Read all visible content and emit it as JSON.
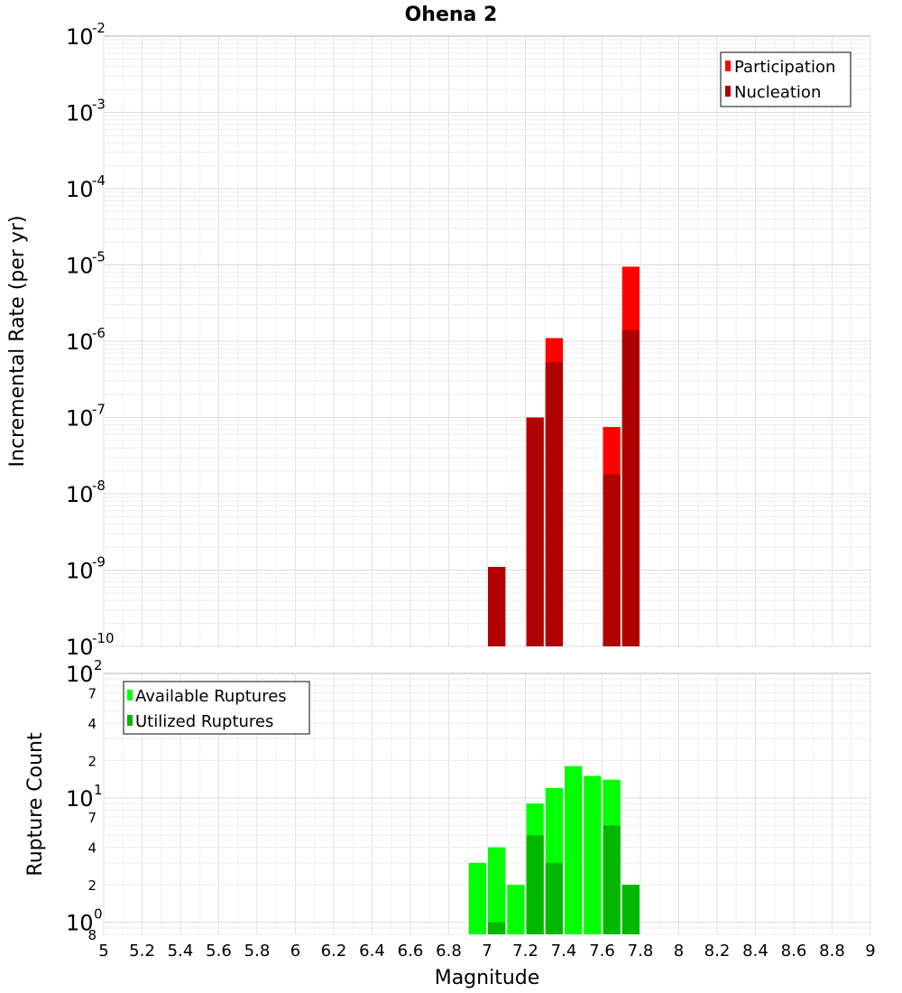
{
  "chart_data": [
    {
      "type": "bar",
      "title": "Ohena 2",
      "xlabel": "Magnitude",
      "ylabel": "Incremental Rate (per yr)",
      "yscale": "log",
      "ylim": [
        1e-10,
        0.01
      ],
      "xlim": [
        5,
        9
      ],
      "grid": true,
      "legend_position": "top-right",
      "bar_width": 0.1,
      "y_ticks": [
        {
          "base": "10",
          "exp": "-2"
        },
        {
          "base": "10",
          "exp": "-3"
        },
        {
          "base": "10",
          "exp": "-4"
        },
        {
          "base": "10",
          "exp": "-5"
        },
        {
          "base": "10",
          "exp": "-6"
        },
        {
          "base": "10",
          "exp": "-7"
        },
        {
          "base": "10",
          "exp": "-8"
        },
        {
          "base": "10",
          "exp": "-9"
        },
        {
          "base": "10",
          "exp": "-10"
        }
      ],
      "series": [
        {
          "name": "Participation",
          "color": "#ff0000",
          "points": [
            {
              "x": 7.05,
              "y": 1.1e-09
            },
            {
              "x": 7.25,
              "y": 1e-07
            },
            {
              "x": 7.35,
              "y": 1.1e-06
            },
            {
              "x": 7.65,
              "y": 7.5e-08
            },
            {
              "x": 7.75,
              "y": 9.5e-06
            }
          ]
        },
        {
          "name": "Nucleation",
          "color": "#b00000",
          "points": [
            {
              "x": 7.05,
              "y": 1.1e-09
            },
            {
              "x": 7.25,
              "y": 1e-07
            },
            {
              "x": 7.35,
              "y": 5.3e-07
            },
            {
              "x": 7.65,
              "y": 1.8e-08
            },
            {
              "x": 7.75,
              "y": 1.4e-06
            }
          ]
        }
      ]
    },
    {
      "type": "bar",
      "xlabel": "Magnitude",
      "ylabel": "Rupture Count",
      "yscale": "log",
      "ylim": [
        0.8,
        100
      ],
      "xlim": [
        5,
        9
      ],
      "grid": true,
      "legend_position": "top-left",
      "bar_width": 0.1,
      "x_ticks": [
        "5",
        "5.2",
        "5.4",
        "5.6",
        "5.8",
        "6",
        "6.2",
        "6.4",
        "6.6",
        "6.8",
        "7",
        "7.2",
        "7.4",
        "7.6",
        "7.8",
        "8",
        "8.2",
        "8.4",
        "8.6",
        "8.8",
        "9"
      ],
      "y_major_ticks": [
        {
          "value": 100,
          "base": "10",
          "exp": "2"
        },
        {
          "value": 10,
          "base": "10",
          "exp": "1"
        },
        {
          "value": 1,
          "base": "10",
          "exp": "0"
        }
      ],
      "y_minor_ticks": [
        {
          "value": 70,
          "label": "7"
        },
        {
          "value": 40,
          "label": "4"
        },
        {
          "value": 20,
          "label": "2"
        },
        {
          "value": 7,
          "label": "7"
        },
        {
          "value": 4,
          "label": "4"
        },
        {
          "value": 2,
          "label": "2"
        },
        {
          "value": 0.8,
          "label": "8"
        }
      ],
      "series": [
        {
          "name": "Available Ruptures",
          "color": "#00ff00",
          "points": [
            {
              "x": 6.95,
              "y": 3
            },
            {
              "x": 7.05,
              "y": 4
            },
            {
              "x": 7.15,
              "y": 2
            },
            {
              "x": 7.25,
              "y": 9
            },
            {
              "x": 7.35,
              "y": 12
            },
            {
              "x": 7.45,
              "y": 18
            },
            {
              "x": 7.55,
              "y": 15
            },
            {
              "x": 7.65,
              "y": 14
            },
            {
              "x": 7.75,
              "y": 2
            }
          ]
        },
        {
          "name": "Utilized Ruptures",
          "color": "#00b800",
          "points": [
            {
              "x": 7.05,
              "y": 1
            },
            {
              "x": 7.25,
              "y": 5
            },
            {
              "x": 7.35,
              "y": 3
            },
            {
              "x": 7.65,
              "y": 6
            },
            {
              "x": 7.75,
              "y": 2
            }
          ]
        }
      ]
    }
  ]
}
